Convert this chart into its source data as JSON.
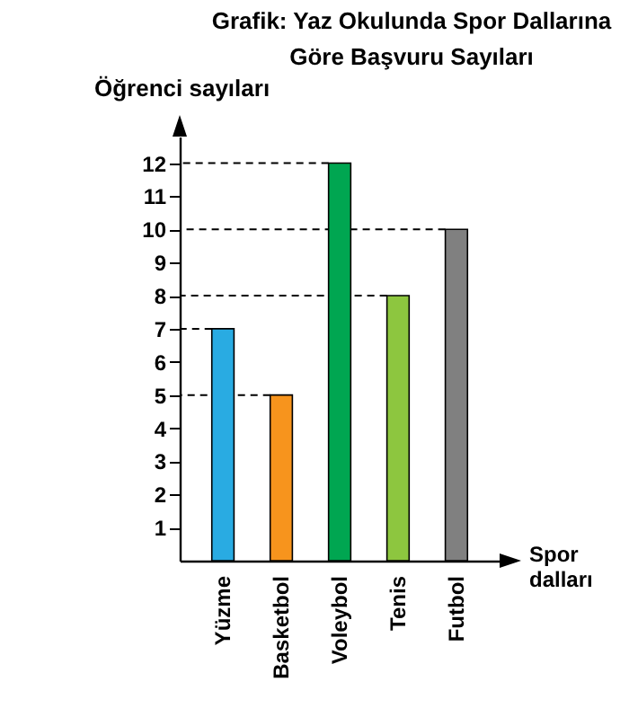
{
  "chart_data": {
    "type": "bar",
    "title": [
      "Grafik: Yaz Okulunda Spor Dallarına",
      "Göre Başvuru Sayıları"
    ],
    "ylabel": "Öğrenci sayıları",
    "xlabel": "Spor dalları",
    "categories": [
      "Yüzme",
      "Basketbol",
      "Voleybol",
      "Tenis",
      "Futbol"
    ],
    "values": [
      7,
      5,
      12,
      8,
      10
    ],
    "colors": [
      "#29abe2",
      "#f7941d",
      "#00a651",
      "#8dc63f",
      "#808080"
    ],
    "ylim": [
      0,
      12.8
    ],
    "yticks": [
      1,
      2,
      3,
      4,
      5,
      6,
      7,
      8,
      9,
      10,
      11,
      12
    ],
    "grid": false,
    "ref_lines": [
      {
        "axis": "y",
        "value": 12,
        "color": "#000000",
        "line_style": "dashed"
      },
      {
        "axis": "y",
        "value": 10,
        "color": "#000000",
        "line_style": "dashed"
      },
      {
        "axis": "y",
        "value": 8,
        "color": "#000000",
        "line_style": "dashed"
      },
      {
        "axis": "y",
        "value": 7,
        "color": "#000000",
        "line_style": "dashed"
      },
      {
        "axis": "y",
        "value": 5,
        "color": "#000000",
        "line_style": "dashed"
      }
    ]
  }
}
